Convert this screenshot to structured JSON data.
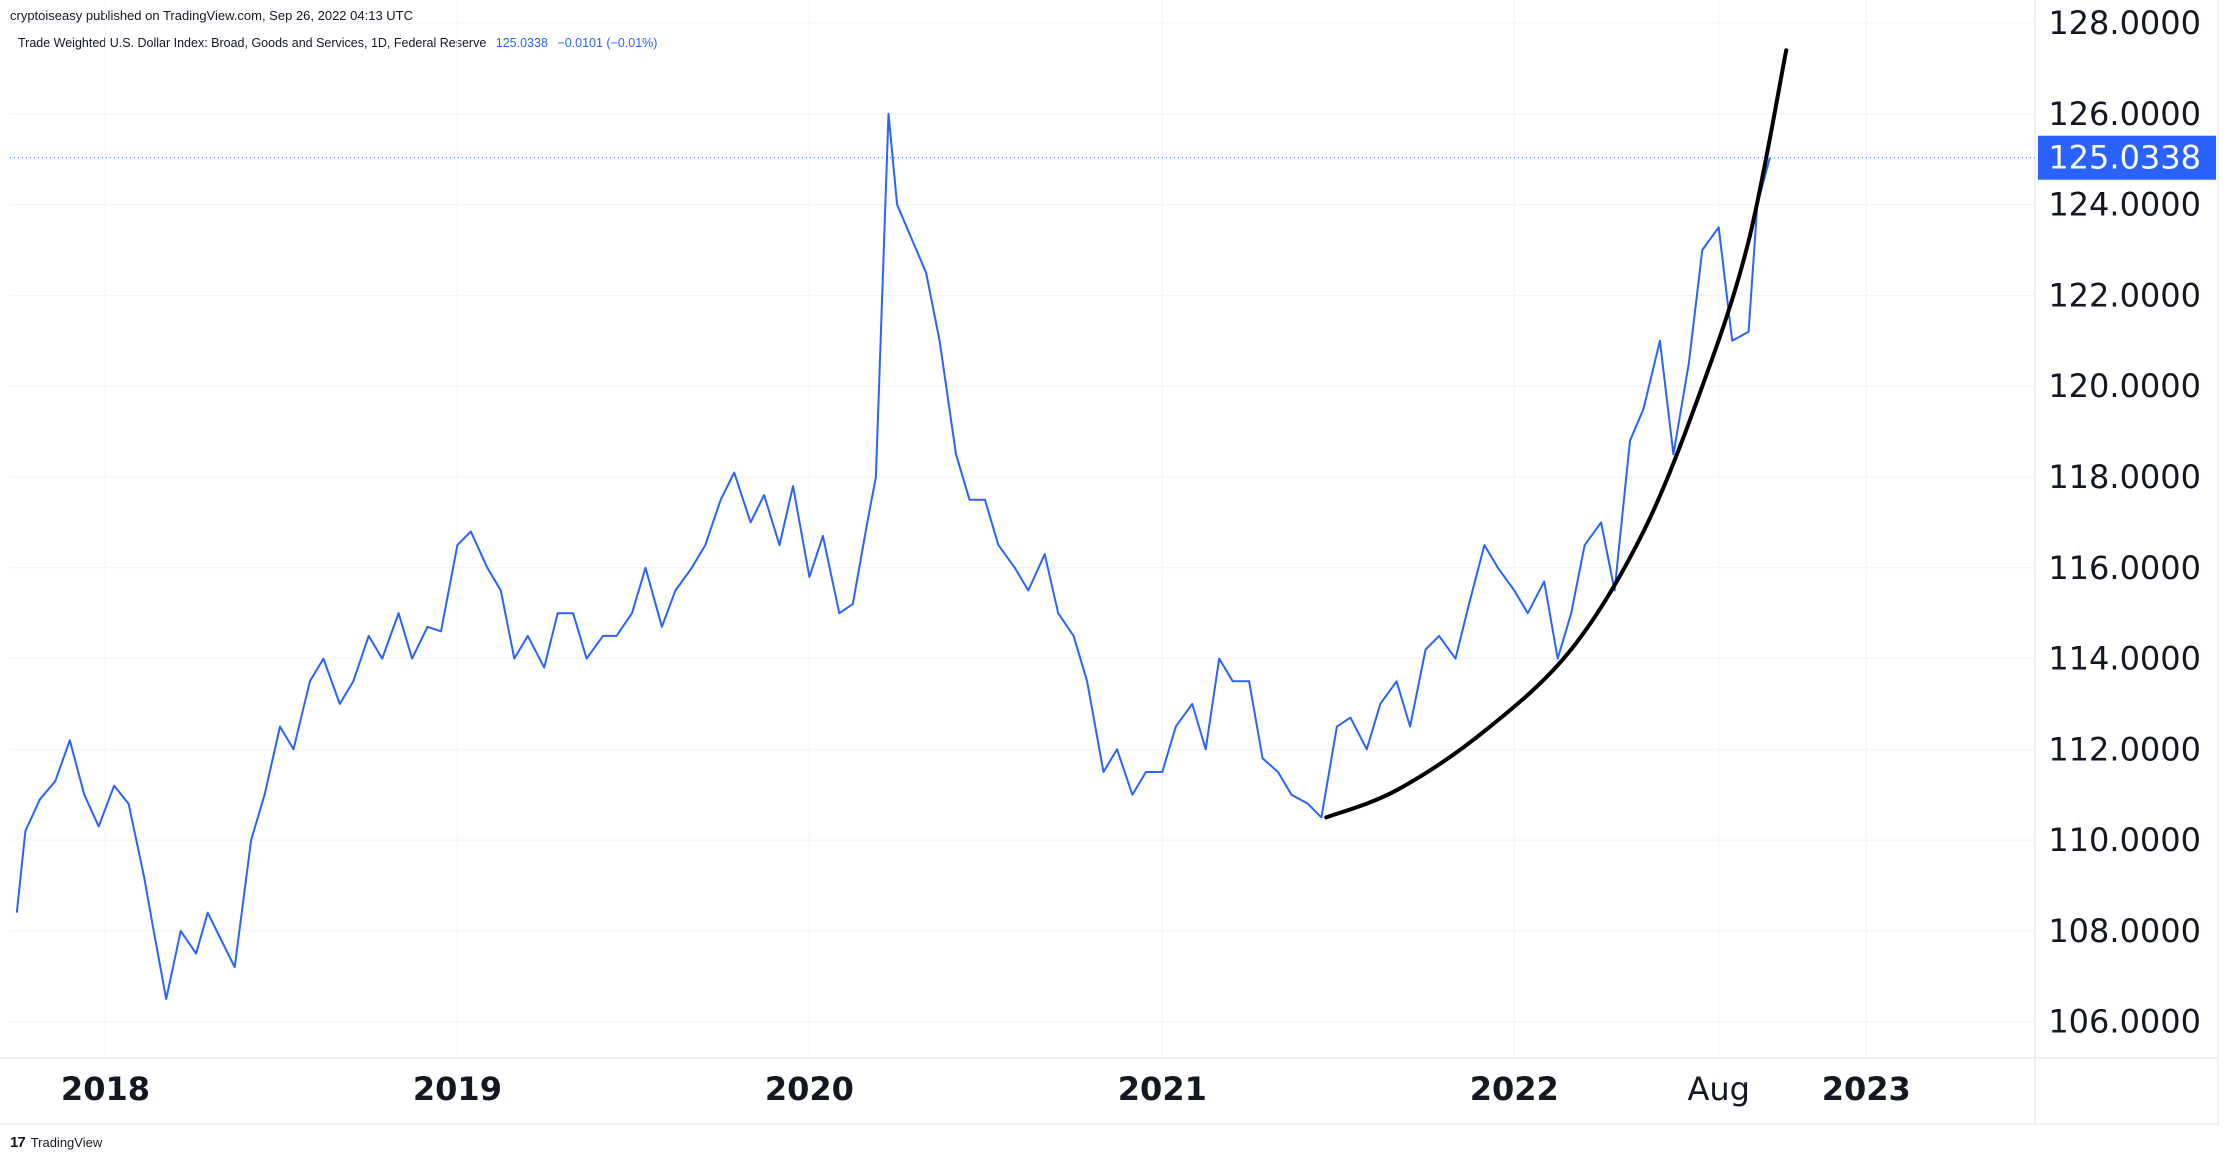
{
  "header": {
    "published_text": "cryptoiseasy published on TradingView.com, Sep 26, 2022 04:13 UTC"
  },
  "legend": {
    "title": "Trade Weighted U.S. Dollar Index: Broad, Goods and Services, 1D, Federal Reserve",
    "value": "125.0338",
    "change": "−0.0101 (−0.01%)"
  },
  "footer": {
    "brand": "TradingView",
    "logo_mark": "17"
  },
  "colors": {
    "series": "#2962ff",
    "curve": "#000000",
    "grid": "#f0f3fa",
    "price_tag_bg": "#2962ff"
  },
  "chart_data": {
    "type": "line",
    "series": [
      {
        "name": "Trade Weighted U.S. Dollar Index: Broad, Goods and Services",
        "x": [
          "2017-10-01",
          "2017-10-10",
          "2017-10-25",
          "2017-11-10",
          "2017-11-25",
          "2017-12-10",
          "2017-12-25",
          "2018-01-10",
          "2018-01-25",
          "2018-02-10",
          "2018-02-20",
          "2018-03-05",
          "2018-03-20",
          "2018-04-05",
          "2018-04-17",
          "2018-05-01",
          "2018-05-15",
          "2018-06-01",
          "2018-06-15",
          "2018-07-01",
          "2018-07-15",
          "2018-08-01",
          "2018-08-15",
          "2018-09-01",
          "2018-09-15",
          "2018-10-01",
          "2018-10-15",
          "2018-11-01",
          "2018-11-15",
          "2018-12-01",
          "2018-12-15",
          "2019-01-01",
          "2019-01-15",
          "2019-02-01",
          "2019-02-15",
          "2019-03-01",
          "2019-03-15",
          "2019-04-01",
          "2019-04-15",
          "2019-05-01",
          "2019-05-15",
          "2019-06-01",
          "2019-06-15",
          "2019-07-01",
          "2019-07-15",
          "2019-08-01",
          "2019-08-15",
          "2019-09-01",
          "2019-09-15",
          "2019-10-01",
          "2019-10-15",
          "2019-11-01",
          "2019-11-15",
          "2019-12-01",
          "2019-12-15",
          "2020-01-01",
          "2020-01-15",
          "2020-02-01",
          "2020-02-15",
          "2020-03-01",
          "2020-03-10",
          "2020-03-23",
          "2020-04-01",
          "2020-04-15",
          "2020-05-01",
          "2020-05-15",
          "2020-06-01",
          "2020-06-15",
          "2020-07-01",
          "2020-07-15",
          "2020-08-01",
          "2020-08-15",
          "2020-09-01",
          "2020-09-15",
          "2020-10-01",
          "2020-10-15",
          "2020-11-01",
          "2020-11-15",
          "2020-12-01",
          "2020-12-15",
          "2021-01-01",
          "2021-01-15",
          "2021-02-01",
          "2021-02-15",
          "2021-03-01",
          "2021-03-15",
          "2021-04-01",
          "2021-04-15",
          "2021-05-01",
          "2021-05-15",
          "2021-06-01",
          "2021-06-15",
          "2021-07-01",
          "2021-07-15",
          "2021-08-01",
          "2021-08-15",
          "2021-09-01",
          "2021-09-15",
          "2021-10-01",
          "2021-10-15",
          "2021-11-01",
          "2021-11-15",
          "2021-12-01",
          "2021-12-15",
          "2022-01-01",
          "2022-01-15",
          "2022-02-01",
          "2022-02-15",
          "2022-03-01",
          "2022-03-15",
          "2022-04-01",
          "2022-04-15",
          "2022-05-01",
          "2022-05-15",
          "2022-06-01",
          "2022-06-15",
          "2022-07-01",
          "2022-07-15",
          "2022-08-01",
          "2022-08-15",
          "2022-09-01",
          "2022-09-10",
          "2022-09-23"
        ],
        "values": [
          108.4,
          110.2,
          110.9,
          111.3,
          112.2,
          111.0,
          110.3,
          111.2,
          110.8,
          109.2,
          108.0,
          106.5,
          108.0,
          107.5,
          108.4,
          107.8,
          107.2,
          110.0,
          111.0,
          112.5,
          112.0,
          113.5,
          114.0,
          113.0,
          113.5,
          114.5,
          114.0,
          115.0,
          114.0,
          114.7,
          114.6,
          116.5,
          116.8,
          116.0,
          115.5,
          114.0,
          114.5,
          113.8,
          115.0,
          115.0,
          114.0,
          114.5,
          114.5,
          115.0,
          116.0,
          114.7,
          115.5,
          116.0,
          116.5,
          117.5,
          118.1,
          117.0,
          117.6,
          116.5,
          117.8,
          115.8,
          116.7,
          115.0,
          115.2,
          117.0,
          118.0,
          126.0,
          124.0,
          123.3,
          122.5,
          121.0,
          118.5,
          117.5,
          117.5,
          116.5,
          116.0,
          115.5,
          116.3,
          115.0,
          114.5,
          113.5,
          111.5,
          112.0,
          111.0,
          111.5,
          111.5,
          112.5,
          113.0,
          112.0,
          114.0,
          113.5,
          113.5,
          111.8,
          111.5,
          111.0,
          110.8,
          110.5,
          112.5,
          112.7,
          112.0,
          113.0,
          113.5,
          112.5,
          114.2,
          114.5,
          114.0,
          115.2,
          116.5,
          116.0,
          115.5,
          115.0,
          115.7,
          114.0,
          115.0,
          116.5,
          117.0,
          115.5,
          118.8,
          119.5,
          121.0,
          118.5,
          120.5,
          123.0,
          123.5,
          121.0,
          121.2,
          124.0,
          125.03
        ]
      }
    ],
    "overlay_curve": {
      "description_free": true,
      "x": [
        "2021-06-20",
        "2021-09-01",
        "2021-12-01",
        "2022-03-01",
        "2022-05-15",
        "2022-07-15",
        "2022-09-01",
        "2022-10-10"
      ],
      "values": [
        110.5,
        111.1,
        112.4,
        114.2,
        116.8,
        120.0,
        123.2,
        127.4
      ]
    },
    "last_value": 125.0338,
    "y_ticks": [
      "106.0000",
      "108.0000",
      "110.0000",
      "112.0000",
      "114.0000",
      "116.0000",
      "118.0000",
      "120.0000",
      "122.0000",
      "124.0000",
      "126.0000",
      "128.0000"
    ],
    "x_ticks": [
      {
        "label": "2018",
        "date": "2018-01-01",
        "bold": true
      },
      {
        "label": "2019",
        "date": "2019-01-01",
        "bold": true
      },
      {
        "label": "2020",
        "date": "2020-01-01",
        "bold": true
      },
      {
        "label": "2021",
        "date": "2021-01-01",
        "bold": true
      },
      {
        "label": "2022",
        "date": "2022-01-01",
        "bold": true
      },
      {
        "label": "Aug",
        "date": "2022-08-01",
        "bold": false
      },
      {
        "label": "2023",
        "date": "2023-01-01",
        "bold": true
      }
    ],
    "ylim": [
      105.2,
      128.2
    ],
    "xlim": [
      "2017-09-24",
      "2023-06-25"
    ],
    "grid": true,
    "y_axis_side": "right"
  }
}
